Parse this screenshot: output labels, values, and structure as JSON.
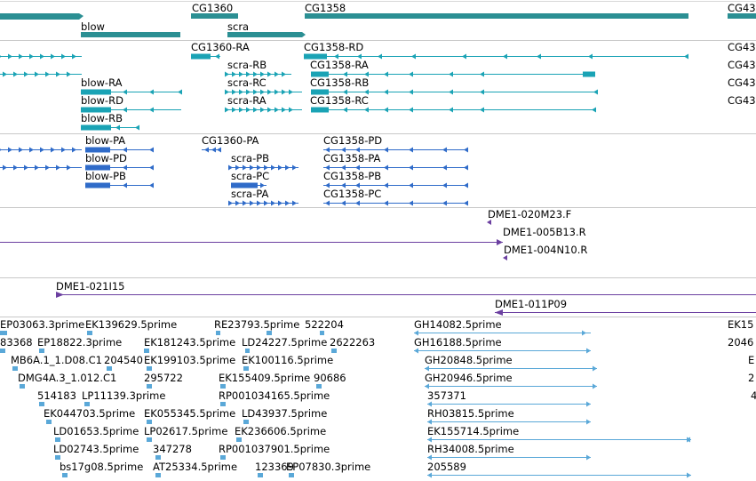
{
  "colors": {
    "gene": "#2b8f93",
    "transcript": "#1aa3b5",
    "protein": "#2f6bc9",
    "clone": "#6b3fa0",
    "est": "#5aa8d8",
    "divider": "#c8c8c8"
  },
  "tracks": {
    "genes": {
      "labels": [
        "blow",
        "CG1360",
        "scra",
        "CG1358",
        "CG43"
      ]
    },
    "transcripts": {
      "labels": [
        "CG1360-RA",
        "CG1358-RD",
        "scra-RB",
        "CG1358-RA",
        "blow-RA",
        "scra-RC",
        "CG1358-RB",
        "blow-RD",
        "scra-RA",
        "CG1358-RC",
        "blow-RB",
        "CG43",
        "CG43",
        "CG43",
        "CG43"
      ]
    },
    "proteins": {
      "labels": [
        "blow-PA",
        "CG1360-PA",
        "CG1358-PD",
        "blow-PD",
        "scra-PB",
        "CG1358-PA",
        "blow-PB",
        "scra-PC",
        "CG1358-PB",
        "scra-PA",
        "CG1358-PC"
      ]
    },
    "clones_a": {
      "labels": [
        "DME1-020M23.F",
        "DME1-005B13.R",
        "DME1-004N10.R"
      ]
    },
    "clones_b": {
      "labels": [
        "DME1-021I15",
        "DME1-011P09"
      ]
    },
    "ests": {
      "labels": [
        "EP03063.3prime",
        "EK139629.5prime",
        "RE23793.5prime",
        "522204",
        "GH14082.5prime",
        "EK15",
        "83368",
        "EP18822.3prime",
        "EK181243.5prime",
        "LD24227.5prime",
        "2622263",
        "GH16188.5prime",
        "2046",
        "MB6A.1_1.D08.C1",
        "204540",
        "EK199103.5prime",
        "EK100116.5prime",
        "GH20848.5prime",
        "E",
        "DMG4A.3_1.012.C1",
        "295722",
        "EK155409.5prime",
        "90686",
        "GH20946.5prime",
        "2",
        "514183",
        "LP11139.3prime",
        "RP001034165.5prime",
        "357371",
        "4",
        "EK044703.5prime",
        "EK055345.5prime",
        "LD43937.5prime",
        "RH03815.5prime",
        "LD01653.5prime",
        "LP02617.5prime",
        "EK236606.5prime",
        "EK155714.5prime",
        "LD02743.5prime",
        "347278",
        "RP001037901.5prime",
        "RH34008.5prime",
        "bs17g08.5prime",
        "AT25334.5prime",
        "123369",
        "EP07830.3prime",
        "205589"
      ]
    }
  }
}
